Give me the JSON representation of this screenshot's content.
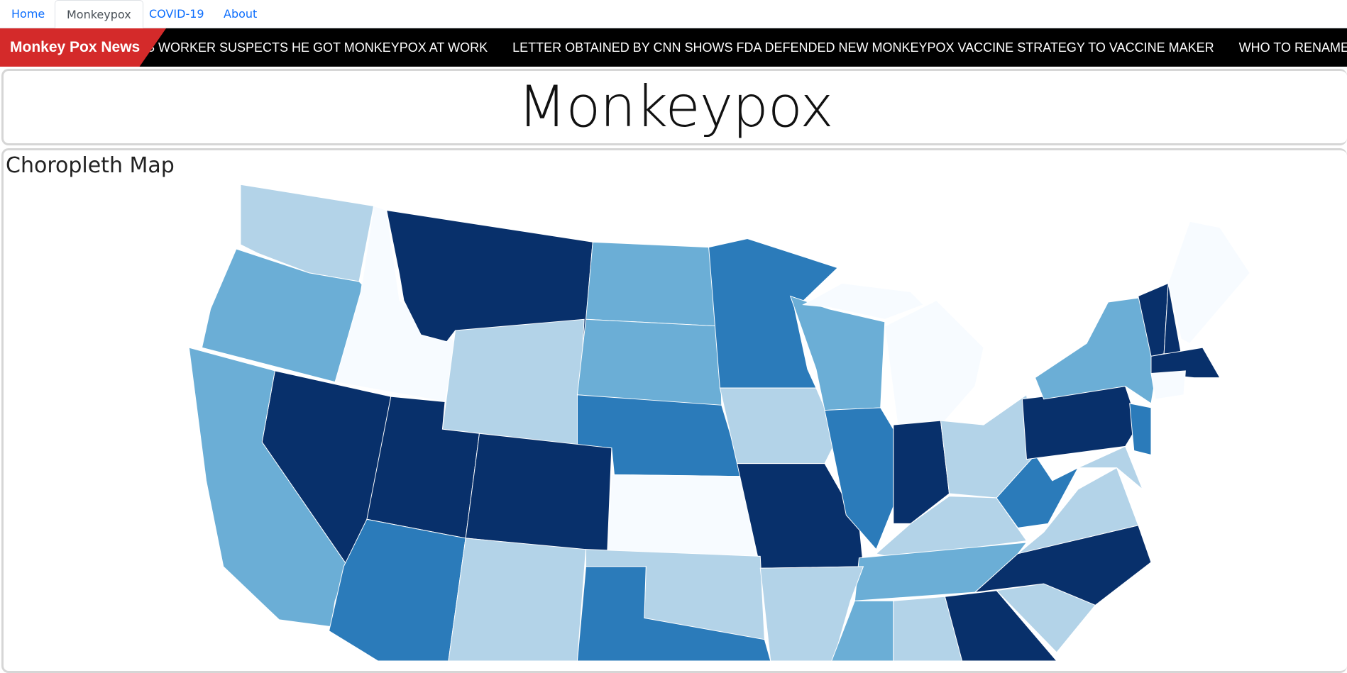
{
  "nav": {
    "tabs": [
      "Home",
      "Monkeypox",
      "COVID-19",
      "About"
    ]
  },
  "ticker": {
    "label": "Monkey Pox News",
    "headlines": [
      "S WORKER SUSPECTS HE GOT MONKEYPOX AT WORK",
      "LETTER OBTAINED BY CNN SHOWS FDA DEFENDED NEW MONKEYPOX VACCINE STRATEGY TO VACCINE MAKER",
      "WHO TO RENAME MONKEYPOX TO AVOI"
    ]
  },
  "header": {
    "title": "Monkeypox"
  },
  "section": {
    "heading": "Choropleth Map"
  }
}
